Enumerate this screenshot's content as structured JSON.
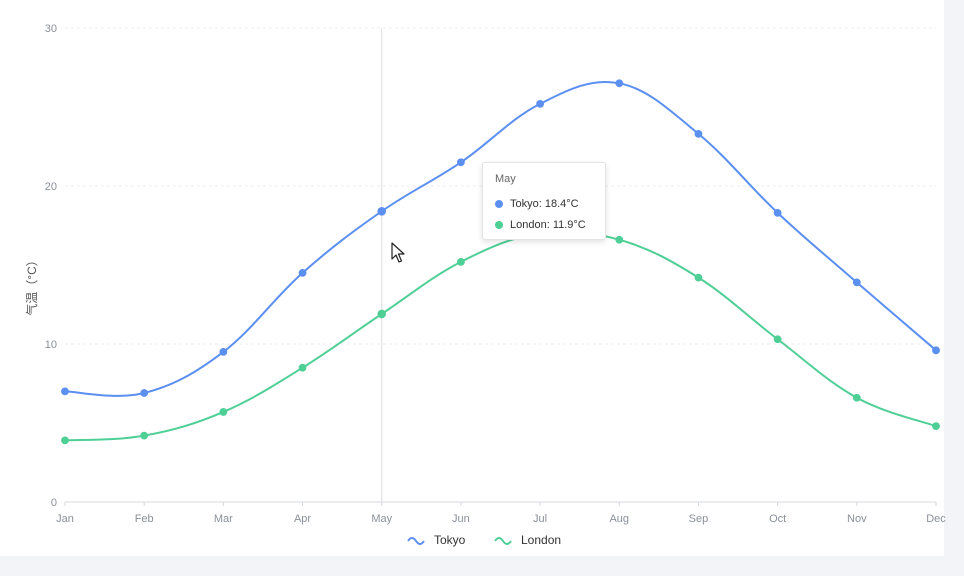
{
  "chart_data": {
    "type": "line",
    "categories": [
      "Jan",
      "Feb",
      "Mar",
      "Apr",
      "May",
      "Jun",
      "Jul",
      "Aug",
      "Sep",
      "Oct",
      "Nov",
      "Dec"
    ],
    "series": [
      {
        "name": "Tokyo",
        "color": "#5b8ff0",
        "values": [
          7.0,
          6.9,
          9.5,
          14.5,
          18.4,
          21.5,
          25.2,
          26.5,
          23.3,
          18.3,
          13.9,
          9.6
        ]
      },
      {
        "name": "London",
        "color": "#4ecf96",
        "values": [
          3.9,
          4.2,
          5.7,
          8.5,
          11.9,
          15.2,
          17.0,
          16.6,
          14.2,
          10.3,
          6.6,
          4.8
        ]
      }
    ],
    "ylabel": "气温（°C）",
    "xlabel": "",
    "ylim": [
      0,
      30
    ],
    "yticks": [
      0,
      10,
      20,
      30
    ],
    "grid": true,
    "legend_position": "bottom-center",
    "smooth": true
  },
  "tooltip": {
    "title": "May",
    "rows": [
      {
        "label": "Tokyo: 18.4°C",
        "color": "#5b8ff0"
      },
      {
        "label": "London: 11.9°C",
        "color": "#4ecf96"
      }
    ],
    "hover_index": 4
  }
}
